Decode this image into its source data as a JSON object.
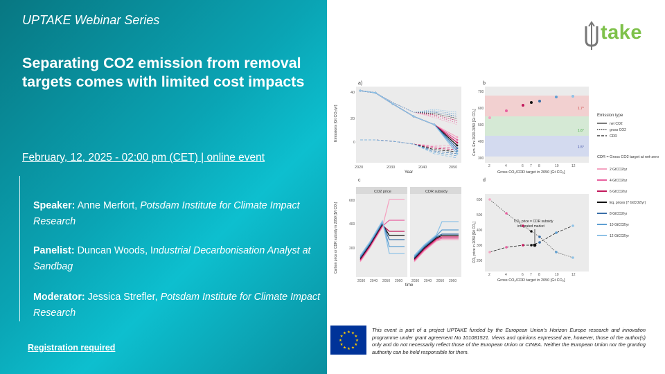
{
  "series_title": "UPTAKE Webinar Series",
  "title": "Separating CO2 emission from removal targets comes with limited cost impacts",
  "event_date": "February, 12, 2025 - 02:00 pm (CET) | online event",
  "speaker": {
    "role": "Speaker:",
    "name": "Anne Merfort,",
    "affiliation": "Potsdam Institute for Climate Impact Research"
  },
  "panelist": {
    "role": "Panelist:",
    "name": "Duncan Woods, I",
    "affiliation": "ndustrial Decarbonisation Analyst at Sandbag"
  },
  "moderator": {
    "role": "Moderator:",
    "name": "Jessica Strefler,",
    "affiliation": "Potsdam Institute for Climate Impact Research"
  },
  "registration": "Registration  required",
  "logo_text": {
    "main": "take",
    "accent": "Ut"
  },
  "disclaimer": "This event is part of a project UPTAKE funded by the European Union’s Horizon Europe research and innovation programme under grant agreement No 101081521. Views and opinions expressed are, however, those of the author(s) only and do not necessarily reflect those of the European Union or CINEA. Neither the European Union nor the granting authority can be held responsible for them.",
  "figure": {
    "panel_a": {
      "label": "a)",
      "ylabel": "Emissions [Gt CO₂/yr]",
      "xlabel": "Year",
      "yticks": [
        "40",
        "20",
        "0"
      ],
      "xticks": [
        "2020",
        "2030",
        "2040",
        "2050"
      ]
    },
    "panel_b": {
      "label": "b",
      "ylabel": "Cum. Emi 2020-2050 [Gt CO₂]",
      "xlabel": "Gross CO₂/CDR target in 2050 [Gt CO₂]",
      "yticks": [
        "700",
        "600",
        "500",
        "400",
        "300"
      ],
      "xticks": [
        "2",
        "4",
        "6",
        "7",
        "8",
        "10",
        "12"
      ],
      "band_labels": [
        "1.7°",
        "1.6°",
        "1.5°"
      ]
    },
    "panel_c": {
      "label": "c",
      "ylabel": "Carbon price or CDR subsidy in 2050 [$/t CO₂]",
      "xlabel": "time",
      "facet_left": "CO2 price",
      "facet_right": "CDR subsidy",
      "yticks": [
        "600",
        "400",
        "200"
      ],
      "xticks": [
        "2030",
        "2040",
        "2050",
        "2060"
      ]
    },
    "panel_d": {
      "label": "d",
      "ylabel": "CO₂ price in 2050 [$/t CO₂]",
      "xlabel": "Gross CO₂/CDR target in 2050 [Gt CO₂]",
      "yticks": [
        "600",
        "500",
        "400",
        "300",
        "200"
      ],
      "xticks": [
        "2",
        "4",
        "6",
        "7",
        "8",
        "10",
        "12"
      ],
      "annotation": [
        "CO₂ price = CDR subsidy",
        "integrated market"
      ]
    },
    "legend_emission": {
      "title": "Emission type",
      "items": [
        "net CO2",
        "gross CO2",
        "CDR"
      ]
    },
    "legend_cdr": {
      "title": "CDR = Gross CO2 target at net-zero",
      "items": [
        "2 GtCO2/yr",
        "4 GtCO2/yr",
        "6 GtCO2/yr",
        "Eq. prices (7 GtCO2/yr)",
        "8 GtCO2/yr",
        "10 GtCO2/yr",
        "12 GtCO2/yr"
      ]
    },
    "colors": [
      "#f4a3c1",
      "#e8609f",
      "#c2185b",
      "#111111",
      "#3a6fa8",
      "#5e9fd2",
      "#8fc2e6"
    ]
  }
}
